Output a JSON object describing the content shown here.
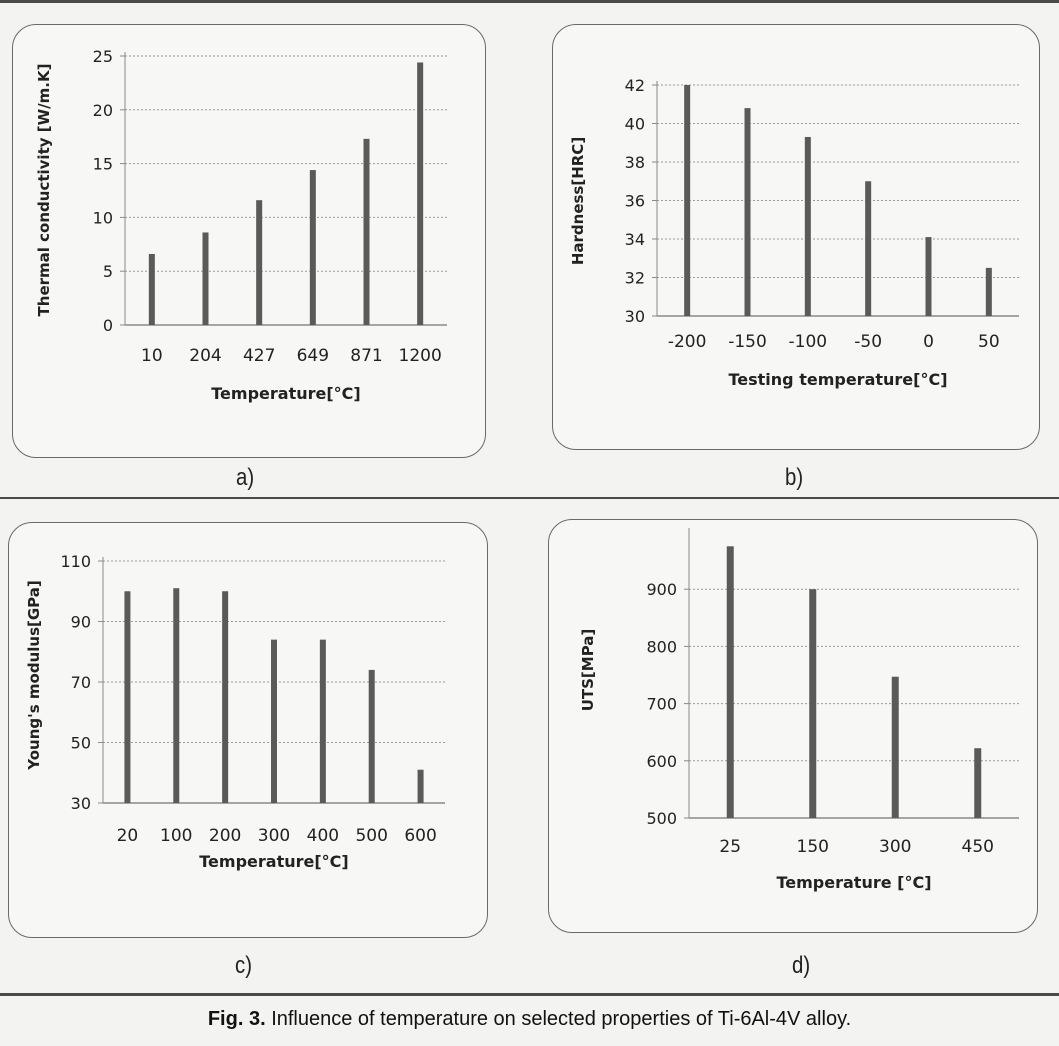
{
  "caption": {
    "prefix": "Fig. 3.",
    "text": " Influence of temperature on selected properties of Ti-6Al-4V alloy."
  },
  "colors": {
    "bar": "#5a5a5a",
    "grid": "#9a9a9a",
    "axis": "#8a8a8a",
    "text": "#222222"
  },
  "chart_data": [
    {
      "id": "a",
      "panel_label": "a)",
      "type": "bar",
      "categories": [
        "10",
        "204",
        "427",
        "649",
        "871",
        "1200"
      ],
      "values": [
        6.6,
        8.6,
        11.6,
        14.4,
        17.3,
        24.4
      ],
      "title": "",
      "xlabel": "Temperature[°C]",
      "ylabel": "Thermal conductivity  [W/m.K]",
      "ylim": [
        0,
        25
      ],
      "yticks": [
        0,
        5,
        10,
        15,
        20,
        25
      ],
      "grid": true
    },
    {
      "id": "b",
      "panel_label": "b)",
      "type": "bar",
      "categories": [
        "-200",
        "-150",
        "-100",
        "-50",
        "0",
        "50"
      ],
      "values": [
        42.0,
        40.8,
        39.3,
        37.0,
        34.1,
        32.5
      ],
      "title": "",
      "xlabel": "Testing temperature[°C]",
      "ylabel": "Hardness[HRC]",
      "ylim": [
        30,
        42
      ],
      "yticks": [
        30,
        32,
        34,
        36,
        38,
        40,
        42
      ],
      "grid": true
    },
    {
      "id": "c",
      "panel_label": "c)",
      "type": "bar",
      "categories": [
        "20",
        "100",
        "200",
        "300",
        "400",
        "500",
        "600"
      ],
      "values": [
        100,
        101,
        100,
        84,
        84,
        74,
        41
      ],
      "title": "",
      "xlabel": "Temperature[°C]",
      "ylabel": "Young's modulus[GPa]",
      "ylim": [
        30,
        110
      ],
      "yticks": [
        30,
        50,
        70,
        90,
        110
      ],
      "grid": true
    },
    {
      "id": "d",
      "panel_label": "d)",
      "type": "bar",
      "categories": [
        "25",
        "150",
        "300",
        "450"
      ],
      "values": [
        975,
        900,
        747,
        622
      ],
      "title": "",
      "xlabel": "Temperature [°C]",
      "ylabel": "UTS[MPa]",
      "ylim": [
        500,
        1000
      ],
      "yticks": [
        500,
        600,
        700,
        800,
        900
      ],
      "grid": true
    }
  ]
}
